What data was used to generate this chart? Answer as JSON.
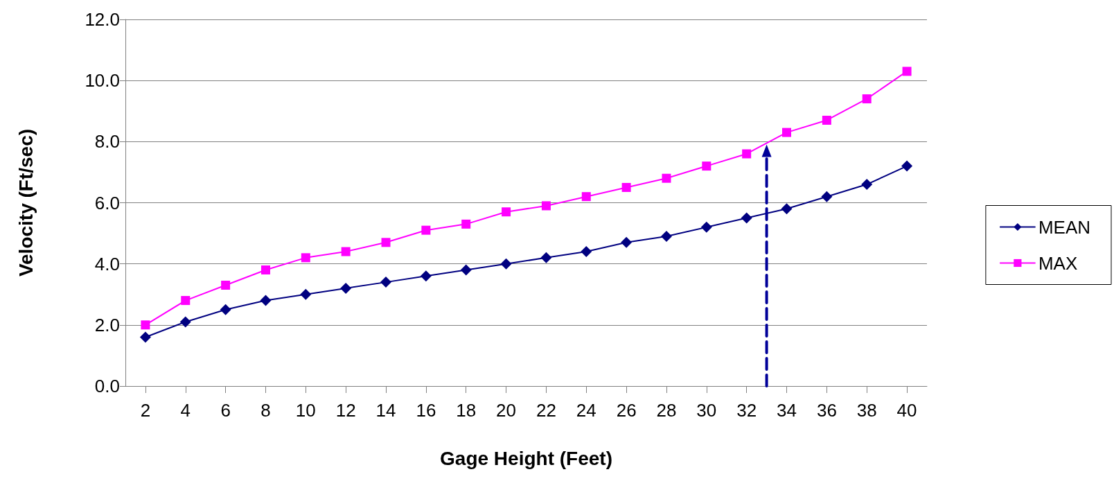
{
  "chart_data": {
    "type": "line",
    "xlabel": "Gage Height (Feet)",
    "ylabel": "Velocity (Ft/sec)",
    "xlim": [
      1,
      41
    ],
    "xticks": [
      2,
      4,
      6,
      8,
      10,
      12,
      14,
      16,
      18,
      20,
      22,
      24,
      26,
      28,
      30,
      32,
      34,
      36,
      38,
      40
    ],
    "ylim": [
      0,
      12
    ],
    "yticks": [
      {
        "value": 0,
        "label": "0.0"
      },
      {
        "value": 2,
        "label": "2.0"
      },
      {
        "value": 4,
        "label": "4.0"
      },
      {
        "value": 6,
        "label": "6.0"
      },
      {
        "value": 8,
        "label": "8.0"
      },
      {
        "value": 10,
        "label": "10.0"
      },
      {
        "value": 12,
        "label": "12.0"
      }
    ],
    "grid": "y",
    "legend": "right",
    "x": [
      2,
      4,
      6,
      8,
      10,
      12,
      14,
      16,
      18,
      20,
      22,
      24,
      26,
      28,
      30,
      32,
      34,
      36,
      38,
      40
    ],
    "series": [
      {
        "name": "MEAN",
        "color": "#000080",
        "marker": "diamond",
        "values": [
          1.6,
          2.1,
          2.5,
          2.8,
          3.0,
          3.2,
          3.4,
          3.6,
          3.8,
          4.0,
          4.2,
          4.4,
          4.7,
          4.9,
          5.2,
          5.5,
          5.8,
          6.2,
          6.6,
          7.2
        ]
      },
      {
        "name": "MAX",
        "color": "#ff00ff",
        "marker": "square",
        "values": [
          2.0,
          2.8,
          3.3,
          3.8,
          4.2,
          4.4,
          4.7,
          5.1,
          5.3,
          5.7,
          5.9,
          6.2,
          6.5,
          6.8,
          7.2,
          7.6,
          8.3,
          8.7,
          9.4,
          10.3
        ]
      },
      {
        "type": "line",
        "color": "#000099",
        "line_style": "dashed",
        "marker": "triangle",
        "x": [
          33,
          33
        ],
        "values": [
          0,
          7.7
        ]
      }
    ]
  }
}
